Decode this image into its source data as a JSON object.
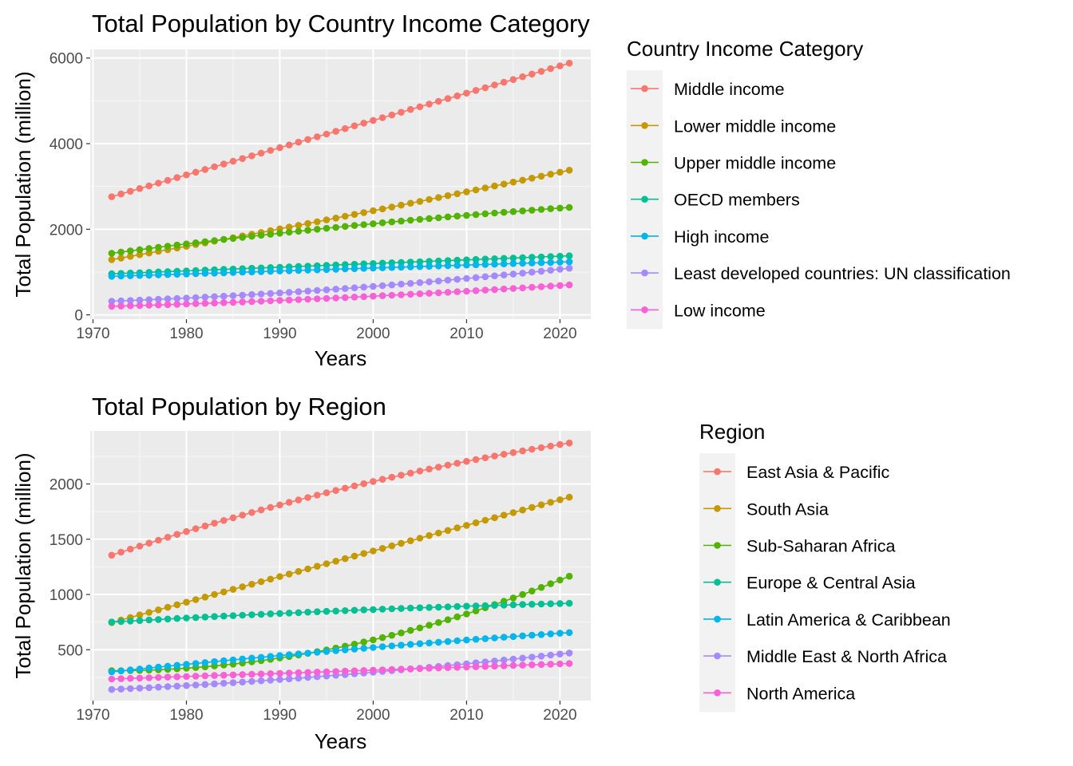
{
  "chart_data": [
    {
      "type": "line",
      "title": "Total Population by Country Income Category",
      "xlabel": "Years",
      "ylabel": "Total Population (million)",
      "xlim": [
        1969.7,
        2023.3
      ],
      "ylim": [
        -100,
        6200
      ],
      "xticks": [
        1970,
        1980,
        1990,
        2000,
        2010,
        2020
      ],
      "yticks": [
        0,
        2000,
        4000,
        6000
      ],
      "grid": true,
      "legend_title": "Country Income Category",
      "legend_position": "right",
      "x_start": 1972,
      "x_end": 2021,
      "series": [
        {
          "name": "Middle income",
          "color": "#F8766D",
          "start": 2760,
          "end": 5880,
          "curve": 0
        },
        {
          "name": "Lower middle income",
          "color": "#C49A00",
          "start": 1290,
          "end": 3380,
          "curve": 0.1
        },
        {
          "name": "Upper middle income",
          "color": "#53B400",
          "start": 1440,
          "end": 2510,
          "curve": -0.3
        },
        {
          "name": "OECD members",
          "color": "#00C094",
          "start": 960,
          "end": 1380,
          "curve": 0
        },
        {
          "name": "High income",
          "color": "#00B6EB",
          "start": 900,
          "end": 1240,
          "curve": 0
        },
        {
          "name": "Least developed countries: UN classification",
          "color": "#A58AFF",
          "start": 320,
          "end": 1090,
          "curve": 0.5
        },
        {
          "name": "Low income",
          "color": "#FB61D7",
          "start": 200,
          "end": 700,
          "curve": 0.4
        }
      ]
    },
    {
      "type": "line",
      "title": "Total Population by Region",
      "xlabel": "Years",
      "ylabel": "Total Population (million)",
      "xlim": [
        1969.7,
        2023.3
      ],
      "ylim": [
        40,
        2480
      ],
      "xticks": [
        1970,
        1980,
        1990,
        2000,
        2010,
        2020
      ],
      "yticks": [
        500,
        1000,
        1500,
        2000
      ],
      "grid": true,
      "legend_title": "Region",
      "legend_position": "right",
      "x_start": 1972,
      "x_end": 2021,
      "series": [
        {
          "name": "East Asia & Pacific",
          "color": "#F8766D",
          "start": 1355,
          "end": 2370,
          "curve": -0.35
        },
        {
          "name": "South Asia",
          "color": "#C49A00",
          "start": 745,
          "end": 1880,
          "curve": 0
        },
        {
          "name": "Sub-Saharan Africa",
          "color": "#53B400",
          "start": 310,
          "end": 1165,
          "curve": 1.0
        },
        {
          "name": "Europe & Central Asia",
          "color": "#00C094",
          "start": 750,
          "end": 920,
          "curve": -0.4
        },
        {
          "name": "Latin America & Caribbean",
          "color": "#00B6EB",
          "start": 300,
          "end": 655,
          "curve": -0.2
        },
        {
          "name": "Middle East & North Africa",
          "color": "#A58AFF",
          "start": 140,
          "end": 470,
          "curve": 0.4
        },
        {
          "name": "North America",
          "color": "#FB61D7",
          "start": 235,
          "end": 375,
          "curve": 0
        }
      ]
    }
  ]
}
